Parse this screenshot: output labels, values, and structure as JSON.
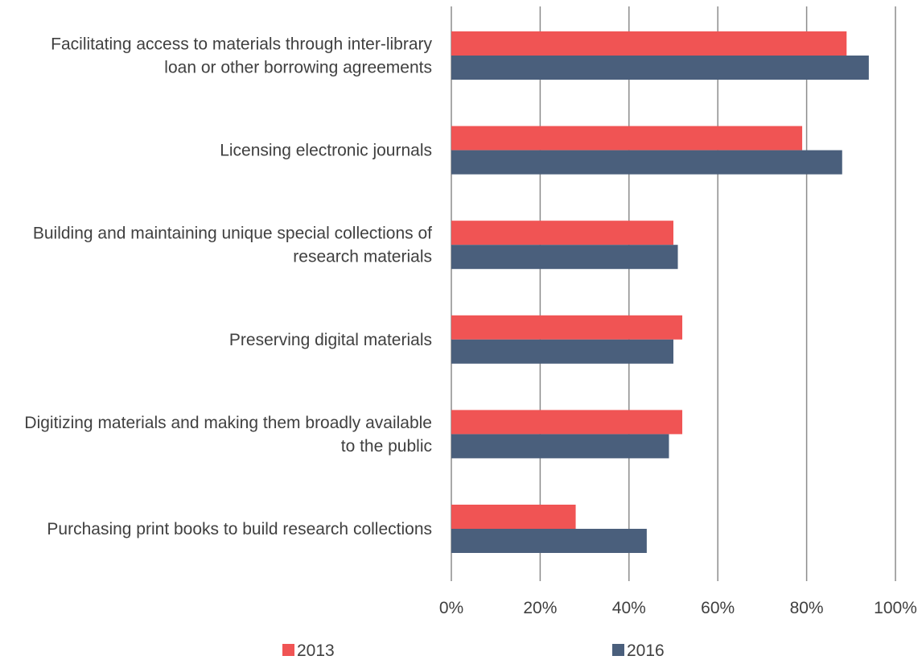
{
  "chart_data": {
    "type": "bar",
    "orientation": "horizontal",
    "categories": [
      [
        "Facilitating access to materials through inter-library",
        "loan or other borrowing agreements"
      ],
      [
        "Licensing electronic journals"
      ],
      [
        "Building and maintaining unique special collections of",
        "research materials"
      ],
      [
        "Preserving digital materials"
      ],
      [
        "Digitizing materials and making them broadly available",
        "to the public"
      ],
      [
        "Purchasing print books to build research collections"
      ]
    ],
    "series": [
      {
        "name": "2013",
        "color": "#f05454",
        "values": [
          0.89,
          0.79,
          0.5,
          0.52,
          0.52,
          0.28
        ]
      },
      {
        "name": "2016",
        "color": "#4a5f7c",
        "values": [
          0.94,
          0.88,
          0.51,
          0.5,
          0.49,
          0.44
        ]
      }
    ],
    "xlim": [
      0,
      1
    ],
    "x_ticks": [
      "0%",
      "20%",
      "40%",
      "60%",
      "80%",
      "100%"
    ],
    "grid": true,
    "legend_position": "bottom"
  }
}
